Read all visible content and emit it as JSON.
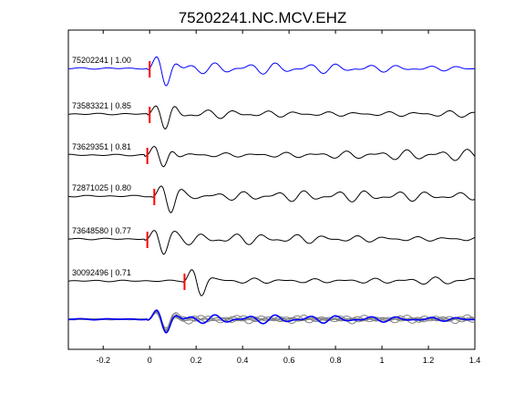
{
  "chart_data": {
    "type": "line",
    "title": "75202241.NC.MCV.EHZ",
    "xlabel": "",
    "ylabel": "",
    "xlim": [
      -0.35,
      1.4
    ],
    "xticks": [
      -0.2,
      0,
      0.2,
      0.4,
      0.6,
      0.8,
      1,
      1.2,
      1.4
    ],
    "xtick_labels": [
      "-0.2",
      "0",
      "0.2",
      "0.4",
      "0.6",
      "0.8",
      "1",
      "1.2",
      "1.4"
    ],
    "grid": false,
    "legend": "none",
    "colors": {
      "reference": "#0000ff",
      "trace": "#000000",
      "stack": "#808080",
      "pick": "#ff0000"
    },
    "series": [
      {
        "name": "75202241 | 1.00",
        "pick_time": 0.0,
        "reference": true
      },
      {
        "name": "73583321 | 0.85",
        "pick_time": 0.0
      },
      {
        "name": "73629351 | 0.81",
        "pick_time": -0.01
      },
      {
        "name": "72871025 | 0.80",
        "pick_time": 0.02
      },
      {
        "name": "73648580 | 0.77",
        "pick_time": -0.01
      },
      {
        "name": "30092496 | 0.71",
        "pick_time": 0.15
      }
    ],
    "overlay": "stacked traces (gray) with reference (blue)"
  }
}
